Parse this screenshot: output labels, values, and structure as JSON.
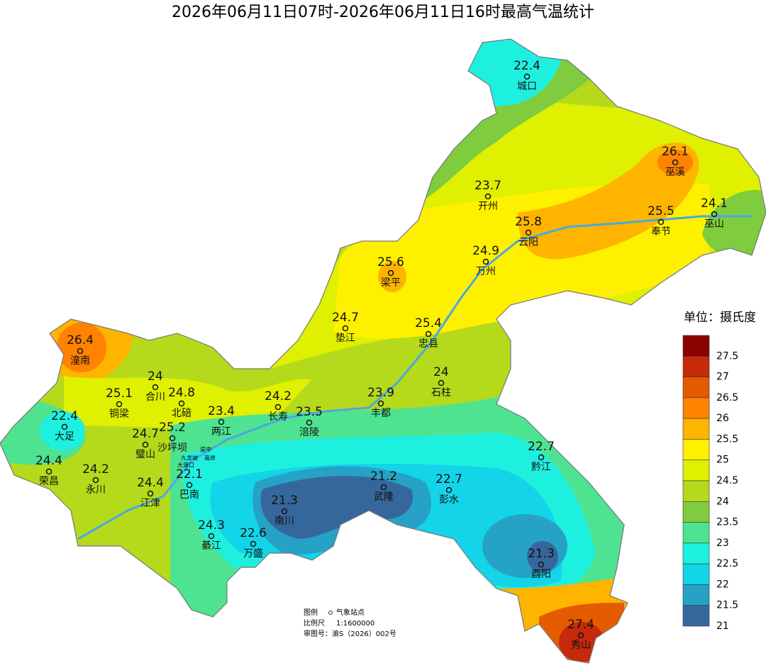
{
  "title": "2026年06月11日07时-2026年06月11日16时最高气温统计",
  "stations": [
    {
      "name": "城口",
      "value": 22.4
    },
    {
      "name": "巫溪",
      "value": 26.1
    },
    {
      "name": "开州",
      "value": 23.7
    },
    {
      "name": "巫山",
      "value": 24.1
    },
    {
      "name": "奉节",
      "value": 25.5
    },
    {
      "name": "云阳",
      "value": 25.8
    },
    {
      "name": "万州",
      "value": 24.9
    },
    {
      "name": "梁平",
      "value": 25.6
    },
    {
      "name": "垫江",
      "value": 24.7
    },
    {
      "name": "忠县",
      "value": 25.4
    },
    {
      "name": "潼南",
      "value": 26.4
    },
    {
      "name": "石柱",
      "value": 24
    },
    {
      "name": "合川",
      "value": 24
    },
    {
      "name": "北碚",
      "value": 24.8
    },
    {
      "name": "铜梁",
      "value": 25.1
    },
    {
      "name": "长寿",
      "value": 24.2
    },
    {
      "name": "丰都",
      "value": 23.9
    },
    {
      "name": "两江",
      "value": 23.4
    },
    {
      "name": "涪陵",
      "value": 23.5
    },
    {
      "name": "大足",
      "value": 22.4
    },
    {
      "name": "沙坪坝",
      "value": 25.2
    },
    {
      "name": "璧山",
      "value": 24.7
    },
    {
      "name": "黔江",
      "value": 22.7
    },
    {
      "name": "荣昌",
      "value": 24.4
    },
    {
      "name": "永川",
      "value": 24.2
    },
    {
      "name": "巴南",
      "value": 22.1
    },
    {
      "name": "武隆",
      "value": 21.2
    },
    {
      "name": "彭水",
      "value": 22.7
    },
    {
      "name": "江津",
      "value": 24.4
    },
    {
      "name": "南川",
      "value": 21.3
    },
    {
      "name": "綦江",
      "value": 24.3
    },
    {
      "name": "万盛",
      "value": 22.6
    },
    {
      "name": "酉阳",
      "value": 21.3
    },
    {
      "name": "秀山",
      "value": 27.4
    }
  ],
  "district_labels": [
    "渝中",
    "九龙坡",
    "南岸",
    "大渡口"
  ],
  "legend": {
    "title": "单位：摄氏度",
    "items": [
      {
        "value": 27.5,
        "color": "#8b0000"
      },
      {
        "value": 27,
        "color": "#c52a0a"
      },
      {
        "value": 26.5,
        "color": "#e65a00"
      },
      {
        "value": 26,
        "color": "#ff8200"
      },
      {
        "value": 25.5,
        "color": "#ffb400"
      },
      {
        "value": 25,
        "color": "#fff000"
      },
      {
        "value": 24.5,
        "color": "#dff000"
      },
      {
        "value": 24,
        "color": "#b5d91b"
      },
      {
        "value": 23.5,
        "color": "#7fcc3e"
      },
      {
        "value": 23,
        "color": "#4ee391"
      },
      {
        "value": 22.5,
        "color": "#1ef0e0"
      },
      {
        "value": 22,
        "color": "#13d4e8"
      },
      {
        "value": 21.5,
        "color": "#26a2c6"
      },
      {
        "value": 21,
        "color": "#36679c"
      }
    ]
  },
  "footer": {
    "legend_label": "图例",
    "legend_item": "气象站点",
    "scale_label": "比例尺",
    "scale": "1:1600000",
    "approval": "审图号：渝S（2026）002号"
  }
}
